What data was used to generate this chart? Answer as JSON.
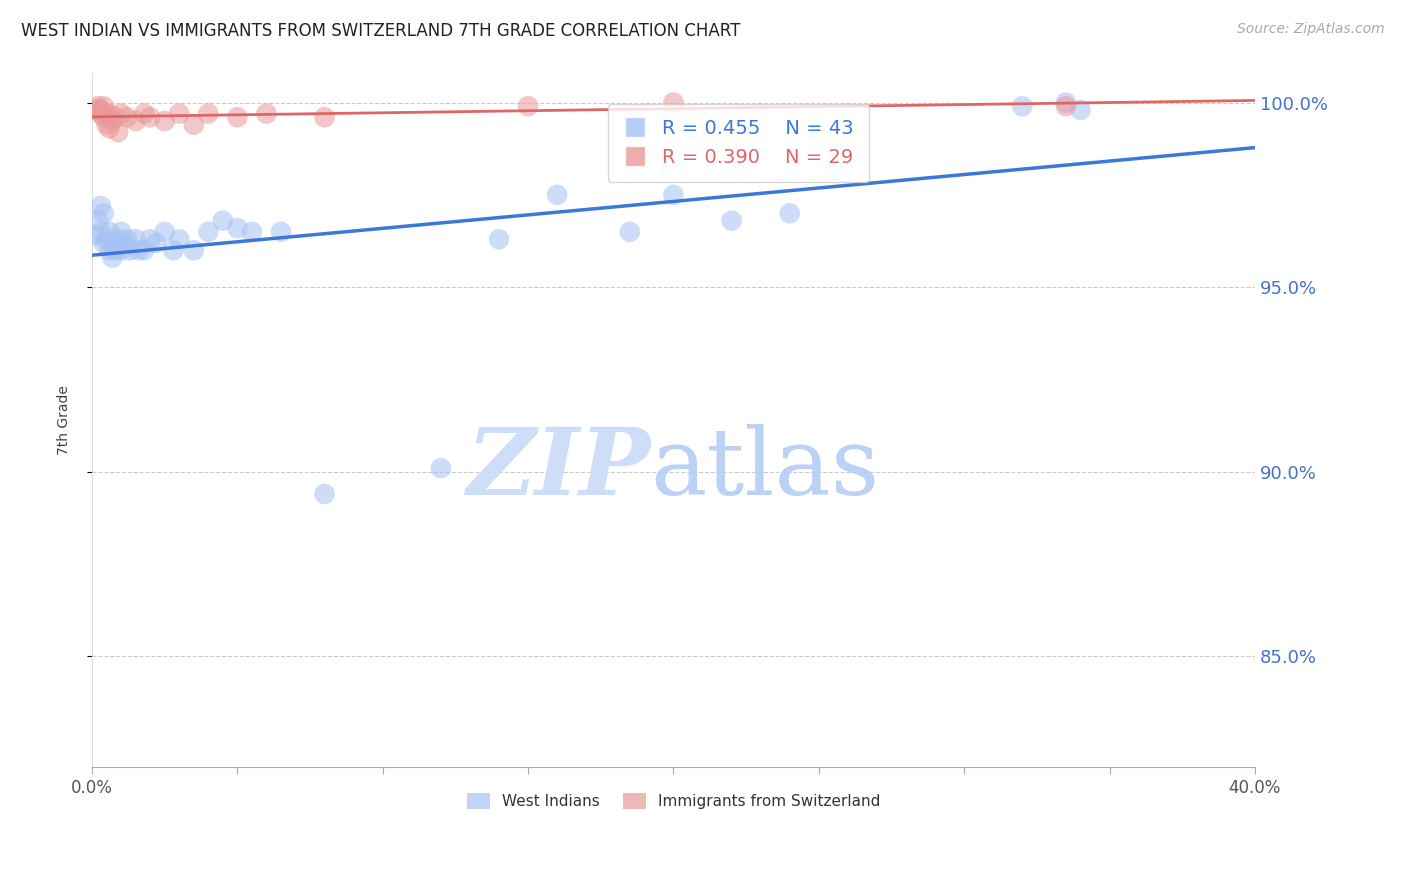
{
  "title": "WEST INDIAN VS IMMIGRANTS FROM SWITZERLAND 7TH GRADE CORRELATION CHART",
  "source_text": "Source: ZipAtlas.com",
  "ylabel": "7th Grade",
  "xlim": [
    0.0,
    0.4
  ],
  "ylim": [
    0.82,
    1.008
  ],
  "xtick_vals": [
    0.0,
    0.05,
    0.1,
    0.15,
    0.2,
    0.25,
    0.3,
    0.35,
    0.4
  ],
  "xtick_labels_sparse": [
    "0.0%",
    "",
    "",
    "",
    "",
    "",
    "",
    "",
    "40.0%"
  ],
  "ytick_vals": [
    0.85,
    0.9,
    0.95,
    1.0
  ],
  "ytick_labels": [
    "85.0%",
    "90.0%",
    "95.0%",
    "100.0%"
  ],
  "blue_R": 0.455,
  "blue_N": 43,
  "pink_R": 0.39,
  "pink_N": 29,
  "blue_scatter_color": "#a4c2f4",
  "pink_scatter_color": "#ea9999",
  "blue_line_color": "#3c78d8",
  "pink_line_color": "#e06666",
  "legend_label_blue": "West Indians",
  "legend_label_pink": "Immigrants from Switzerland",
  "blue_x": [
    0.001,
    0.002,
    0.003,
    0.003,
    0.004,
    0.004,
    0.005,
    0.006,
    0.006,
    0.007,
    0.007,
    0.008,
    0.009,
    0.01,
    0.01,
    0.011,
    0.012,
    0.013,
    0.015,
    0.016,
    0.018,
    0.02,
    0.022,
    0.025,
    0.028,
    0.03,
    0.035,
    0.04,
    0.045,
    0.05,
    0.055,
    0.065,
    0.08,
    0.12,
    0.14,
    0.16,
    0.185,
    0.2,
    0.22,
    0.24,
    0.32,
    0.335,
    0.34
  ],
  "blue_y": [
    0.964,
    0.968,
    0.965,
    0.972,
    0.962,
    0.97,
    0.963,
    0.96,
    0.965,
    0.958,
    0.962,
    0.96,
    0.963,
    0.96,
    0.965,
    0.962,
    0.963,
    0.96,
    0.963,
    0.96,
    0.96,
    0.963,
    0.962,
    0.965,
    0.96,
    0.963,
    0.96,
    0.965,
    0.968,
    0.966,
    0.965,
    0.965,
    0.894,
    0.901,
    0.963,
    0.975,
    0.965,
    0.975,
    0.968,
    0.97,
    0.999,
    1.0,
    0.998
  ],
  "pink_x": [
    0.001,
    0.002,
    0.002,
    0.003,
    0.003,
    0.004,
    0.004,
    0.005,
    0.005,
    0.006,
    0.006,
    0.007,
    0.008,
    0.009,
    0.01,
    0.012,
    0.015,
    0.018,
    0.02,
    0.025,
    0.03,
    0.035,
    0.04,
    0.05,
    0.06,
    0.08,
    0.15,
    0.2,
    0.335
  ],
  "pink_y": [
    0.998,
    0.999,
    0.998,
    0.998,
    0.997,
    0.999,
    0.996,
    0.997,
    0.994,
    0.997,
    0.993,
    0.995,
    0.996,
    0.992,
    0.997,
    0.996,
    0.995,
    0.997,
    0.996,
    0.995,
    0.997,
    0.994,
    0.997,
    0.996,
    0.997,
    0.996,
    0.999,
    1.0,
    0.999
  ]
}
